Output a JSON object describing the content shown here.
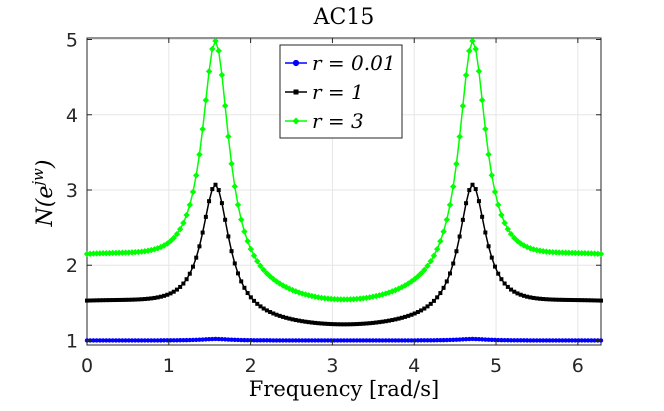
{
  "chart_data": {
    "type": "line",
    "title": "AC15",
    "xlabel": "Frequency [rad/s]",
    "ylabel": "N(e^{jw})",
    "ylabel_parts": {
      "base": "N(e",
      "sup": "jw",
      "close": ")"
    },
    "xlim": [
      0,
      6.283
    ],
    "ylim": [
      0.94,
      5.02
    ],
    "xticks": [
      0,
      1,
      2,
      3,
      4,
      5,
      6
    ],
    "yticks": [
      1,
      2,
      3,
      4,
      5
    ],
    "grid": true,
    "legend_position": "top-center",
    "series": [
      {
        "name": "r = 0.01",
        "legend_label": "r = 0.01",
        "color": "#0000ff",
        "marker": "circle",
        "baseline": 1.0,
        "peak": 1.02
      },
      {
        "name": "r = 1",
        "legend_label": "r = 1",
        "color": "#000000",
        "marker": "square",
        "baseline": 1.53,
        "valley": 1.19,
        "peak": 3.07
      },
      {
        "name": "r = 3",
        "legend_label": "r = 3",
        "color": "#00ff00",
        "marker": "diamond",
        "baseline": 2.15,
        "valley": 1.5,
        "peak": 4.98
      }
    ],
    "x_samples": 161
  }
}
